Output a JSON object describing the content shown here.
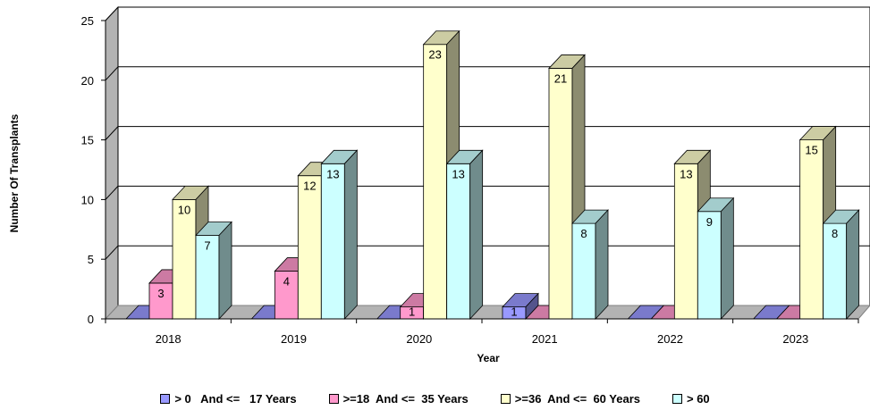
{
  "chart_data": {
    "type": "bar",
    "categories": [
      "2018",
      "2019",
      "2020",
      "2021",
      "2022",
      "2023"
    ],
    "series": [
      {
        "name": "> 0   And <=   17 Years",
        "values": [
          0,
          0,
          0,
          1,
          0,
          0
        ],
        "color": "#9999FF"
      },
      {
        "name": ">=18  And <=  35 Years",
        "values": [
          3,
          4,
          1,
          0,
          0,
          0
        ],
        "color": "#FF99CC"
      },
      {
        "name": ">=36  And <=  60 Years",
        "values": [
          10,
          12,
          23,
          21,
          13,
          15
        ],
        "color": "#FFFFCC"
      },
      {
        "name": "> 60",
        "values": [
          7,
          13,
          13,
          8,
          9,
          8
        ],
        "color": "#CCFFFF"
      }
    ],
    "data_labels": [
      [
        "",
        "",
        "",
        "1",
        "",
        ""
      ],
      [
        "3",
        "4",
        "1",
        "",
        "",
        ""
      ],
      [
        "10",
        "12",
        "23",
        "21",
        "13",
        "15"
      ],
      [
        "7",
        "13",
        "13",
        "8",
        "9",
        "8"
      ]
    ],
    "xlabel": "Year",
    "ylabel": "Number Of Transplants",
    "ylim": [
      0,
      25
    ],
    "yticks": [
      "0",
      "5",
      "10",
      "15",
      "20",
      "25"
    ],
    "grid": true,
    "legend_position": "bottom",
    "style": "3d-column"
  }
}
